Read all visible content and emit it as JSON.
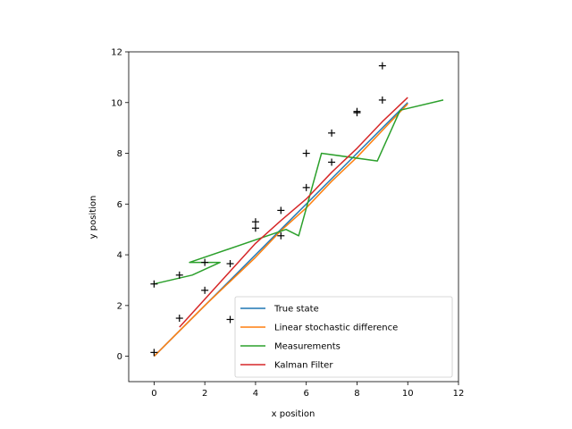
{
  "chart_data": {
    "type": "line",
    "title": "",
    "xlabel": "x position",
    "ylabel": "y position",
    "xlim": [
      -1,
      12
    ],
    "ylim": [
      -1,
      12
    ],
    "xticks": [
      0,
      2,
      4,
      6,
      8,
      10,
      12
    ],
    "yticks": [
      0,
      2,
      4,
      6,
      8,
      10,
      12
    ],
    "grid": false,
    "legend_position": "lower-right",
    "series": [
      {
        "name": "True state",
        "color": "#1f77b4",
        "style": "line",
        "x": [
          0,
          10
        ],
        "y": [
          0,
          10
        ]
      },
      {
        "name": "Linear stochastic difference",
        "color": "#ff7f0e",
        "style": "line",
        "x": [
          0,
          1,
          2,
          3,
          4,
          5,
          6,
          7,
          8,
          9,
          10
        ],
        "y": [
          0.0,
          1.0,
          2.0,
          2.95,
          3.9,
          4.95,
          5.85,
          6.9,
          7.85,
          8.9,
          9.95
        ]
      },
      {
        "name": "Measurements",
        "color": "#2ca02c",
        "style": "line",
        "x": [
          0.0,
          1.5,
          2.6,
          1.4,
          5.2,
          5.7,
          6.6,
          8.8,
          9.7,
          11.4
        ],
        "y": [
          2.85,
          3.2,
          3.7,
          3.7,
          5.0,
          4.75,
          8.0,
          7.7,
          9.7,
          10.1
        ]
      },
      {
        "name": "Kalman Filter",
        "color": "#d62728",
        "style": "line",
        "x": [
          1,
          2,
          3,
          4,
          5,
          6,
          7,
          8,
          9,
          10
        ],
        "y": [
          1.15,
          2.25,
          3.35,
          4.45,
          5.35,
          6.2,
          7.25,
          8.2,
          9.25,
          10.2
        ]
      },
      {
        "name": "",
        "color": "#000000",
        "style": "markers",
        "marker": "plus",
        "x": [
          0,
          0,
          1,
          1,
          2,
          2,
          3,
          3,
          4,
          4,
          5,
          5,
          6,
          6,
          7,
          7,
          8,
          8,
          9,
          9
        ],
        "y": [
          0.15,
          2.85,
          1.5,
          3.2,
          2.6,
          3.7,
          1.45,
          3.65,
          5.05,
          5.3,
          4.75,
          5.75,
          6.65,
          8.0,
          7.65,
          8.8,
          9.6,
          9.65,
          10.1,
          11.45
        ]
      }
    ]
  }
}
